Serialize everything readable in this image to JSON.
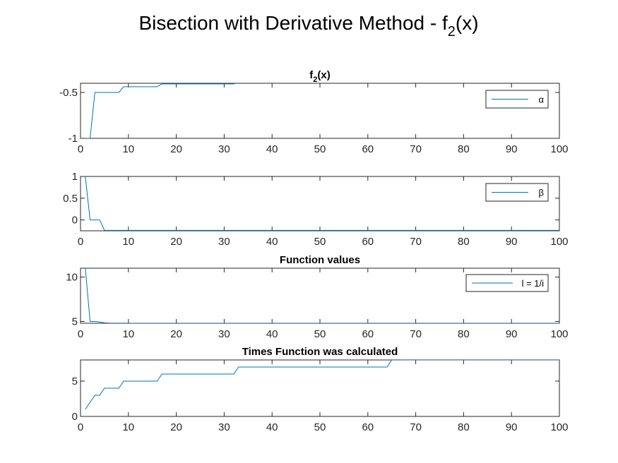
{
  "figure": {
    "title_main": "Bisection with Derivative Method - f",
    "title_sub": "2",
    "title_tail": "(x)"
  },
  "chart_data": [
    {
      "type": "line",
      "title_main": "f",
      "title_sub": "2",
      "title_tail": "(x)",
      "xlim": [
        0,
        100
      ],
      "ylim": [
        -1,
        -0.4
      ],
      "xticks": [
        "0",
        "10",
        "20",
        "30",
        "40",
        "50",
        "60",
        "70",
        "80",
        "90",
        "100"
      ],
      "yticks": [
        {
          "value": -1,
          "label": "-1"
        },
        {
          "value": -0.5,
          "label": "-0.5"
        }
      ],
      "legend": "top-right",
      "grid": false,
      "series": [
        {
          "name": "α",
          "x": [
            1,
            2,
            3,
            4,
            5,
            6,
            7,
            8,
            9,
            10,
            11,
            12,
            13,
            14,
            15,
            16,
            17,
            18,
            19,
            20,
            21,
            22,
            23,
            24,
            25,
            26,
            27,
            28,
            29,
            30,
            31,
            32,
            33,
            34,
            35,
            36,
            37,
            38,
            39,
            40,
            41,
            42,
            43,
            44,
            45,
            46,
            47,
            48,
            49,
            50,
            51,
            52,
            53,
            54,
            55,
            56,
            57,
            58,
            59,
            60,
            61,
            62,
            63,
            64,
            65,
            66,
            67,
            68,
            69,
            70,
            71,
            72,
            73,
            74,
            75,
            76,
            77,
            78,
            79,
            80,
            81,
            82,
            83,
            84,
            85,
            86,
            87,
            88,
            89,
            90,
            91,
            92,
            93,
            94,
            95,
            96,
            97,
            98,
            99,
            100
          ],
          "y": [
            -1,
            -1,
            -0.5,
            -0.5,
            -0.5,
            -0.5,
            -0.5,
            -0.5,
            -0.4375,
            -0.4375,
            -0.4375,
            -0.4375,
            -0.4375,
            -0.4375,
            -0.4375,
            -0.4375,
            -0.4063,
            -0.4063,
            -0.4063,
            -0.4063,
            -0.4063,
            -0.4063,
            -0.4063,
            -0.4063,
            -0.4063,
            -0.4063,
            -0.4063,
            -0.4063,
            -0.4063,
            -0.4063,
            -0.4063,
            -0.4063,
            -0.3906,
            -0.3906,
            -0.3906,
            -0.3906,
            -0.3906,
            -0.3906,
            -0.3906,
            -0.3906,
            -0.3906,
            -0.3906,
            -0.3906,
            -0.3906,
            -0.3906,
            -0.3906,
            -0.3906,
            -0.3906,
            -0.3906,
            -0.3906,
            -0.3906,
            -0.3906,
            -0.3906,
            -0.3906,
            -0.3906,
            -0.3906,
            -0.3906,
            -0.3906,
            -0.3906,
            -0.3906,
            -0.3906,
            -0.3906,
            -0.3906,
            -0.3906,
            -0.3828,
            -0.3828,
            -0.3828,
            -0.3828,
            -0.3828,
            -0.3828,
            -0.3828,
            -0.3828,
            -0.3828,
            -0.3828,
            -0.3828,
            -0.3828,
            -0.3828,
            -0.3828,
            -0.3828,
            -0.3828,
            -0.3828,
            -0.3828,
            -0.3828,
            -0.3828,
            -0.3828,
            -0.3828,
            -0.3828,
            -0.3828,
            -0.3828,
            -0.3828,
            -0.3828,
            -0.3828,
            -0.3828,
            -0.3828,
            -0.3828,
            -0.3828,
            -0.3828,
            -0.3828,
            -0.3828,
            -0.3828
          ]
        }
      ]
    },
    {
      "type": "line",
      "title_main": "",
      "xlim": [
        0,
        100
      ],
      "ylim": [
        -0.25,
        1
      ],
      "xticks": [
        "0",
        "10",
        "20",
        "30",
        "40",
        "50",
        "60",
        "70",
        "80",
        "90",
        "100"
      ],
      "yticks": [
        {
          "value": 0,
          "label": "0"
        },
        {
          "value": 0.5,
          "label": "0.5"
        },
        {
          "value": 1,
          "label": "1"
        }
      ],
      "legend": "top-right",
      "grid": false,
      "series": [
        {
          "name": "β",
          "x": [
            1,
            2,
            3,
            4,
            5,
            100
          ],
          "y": [
            1,
            0,
            0,
            0,
            -0.24,
            -0.24
          ]
        }
      ]
    },
    {
      "type": "line",
      "title_main": "Function values",
      "xlim": [
        0,
        100
      ],
      "ylim": [
        4.8,
        11
      ],
      "xticks": [
        "0",
        "10",
        "20",
        "30",
        "40",
        "50",
        "60",
        "70",
        "80",
        "90",
        "100"
      ],
      "yticks": [
        {
          "value": 5,
          "label": "5"
        },
        {
          "value": 10,
          "label": "10"
        }
      ],
      "legend": "top-right",
      "grid": false,
      "series": [
        {
          "name": "l = 1/i",
          "x": [
            1,
            2,
            3,
            4,
            5,
            6,
            7,
            8,
            9,
            10,
            100
          ],
          "y": [
            11,
            5,
            5,
            4.95,
            4.85,
            4.82,
            4.81,
            4.81,
            4.81,
            4.8,
            4.8
          ]
        }
      ]
    },
    {
      "type": "line",
      "title_main": "Times Function was calculated",
      "xlim": [
        0,
        100
      ],
      "ylim": [
        0,
        8
      ],
      "xticks": [
        "0",
        "10",
        "20",
        "30",
        "40",
        "50",
        "60",
        "70",
        "80",
        "90",
        "100"
      ],
      "yticks": [
        {
          "value": 0,
          "label": "0"
        },
        {
          "value": 5,
          "label": "5"
        }
      ],
      "grid": false,
      "series": [
        {
          "name": "",
          "x": [
            1,
            2,
            3,
            4,
            5,
            6,
            7,
            8,
            9,
            10,
            11,
            12,
            13,
            14,
            15,
            16,
            17,
            18,
            19,
            20,
            21,
            22,
            23,
            24,
            25,
            26,
            27,
            28,
            29,
            30,
            31,
            32,
            33,
            34,
            35,
            36,
            37,
            38,
            39,
            40,
            41,
            42,
            43,
            44,
            45,
            46,
            47,
            48,
            49,
            50,
            51,
            52,
            53,
            54,
            55,
            56,
            57,
            58,
            59,
            60,
            61,
            62,
            63,
            64,
            65,
            66,
            67,
            68,
            69,
            70,
            71,
            72,
            73,
            74,
            75,
            76,
            77,
            78,
            79,
            80,
            81,
            82,
            83,
            84,
            85,
            86,
            87,
            88,
            89,
            90,
            91,
            92,
            93,
            94,
            95,
            96,
            97,
            98,
            99,
            100
          ],
          "y": [
            1,
            2,
            3,
            3,
            4,
            4,
            4,
            4,
            5,
            5,
            5,
            5,
            5,
            5,
            5,
            5,
            6,
            6,
            6,
            6,
            6,
            6,
            6,
            6,
            6,
            6,
            6,
            6,
            6,
            6,
            6,
            6,
            7,
            7,
            7,
            7,
            7,
            7,
            7,
            7,
            7,
            7,
            7,
            7,
            7,
            7,
            7,
            7,
            7,
            7,
            7,
            7,
            7,
            7,
            7,
            7,
            7,
            7,
            7,
            7,
            7,
            7,
            7,
            7,
            8,
            8,
            8,
            8,
            8,
            8,
            8,
            8,
            8,
            8,
            8,
            8,
            8,
            8,
            8,
            8,
            8,
            8,
            8,
            8,
            8,
            8,
            8,
            8,
            8,
            8,
            8,
            8,
            8,
            8,
            8,
            8,
            8,
            8,
            8,
            8
          ]
        }
      ]
    }
  ],
  "colors": {
    "line": "#0072BD",
    "axis": "#262626"
  }
}
